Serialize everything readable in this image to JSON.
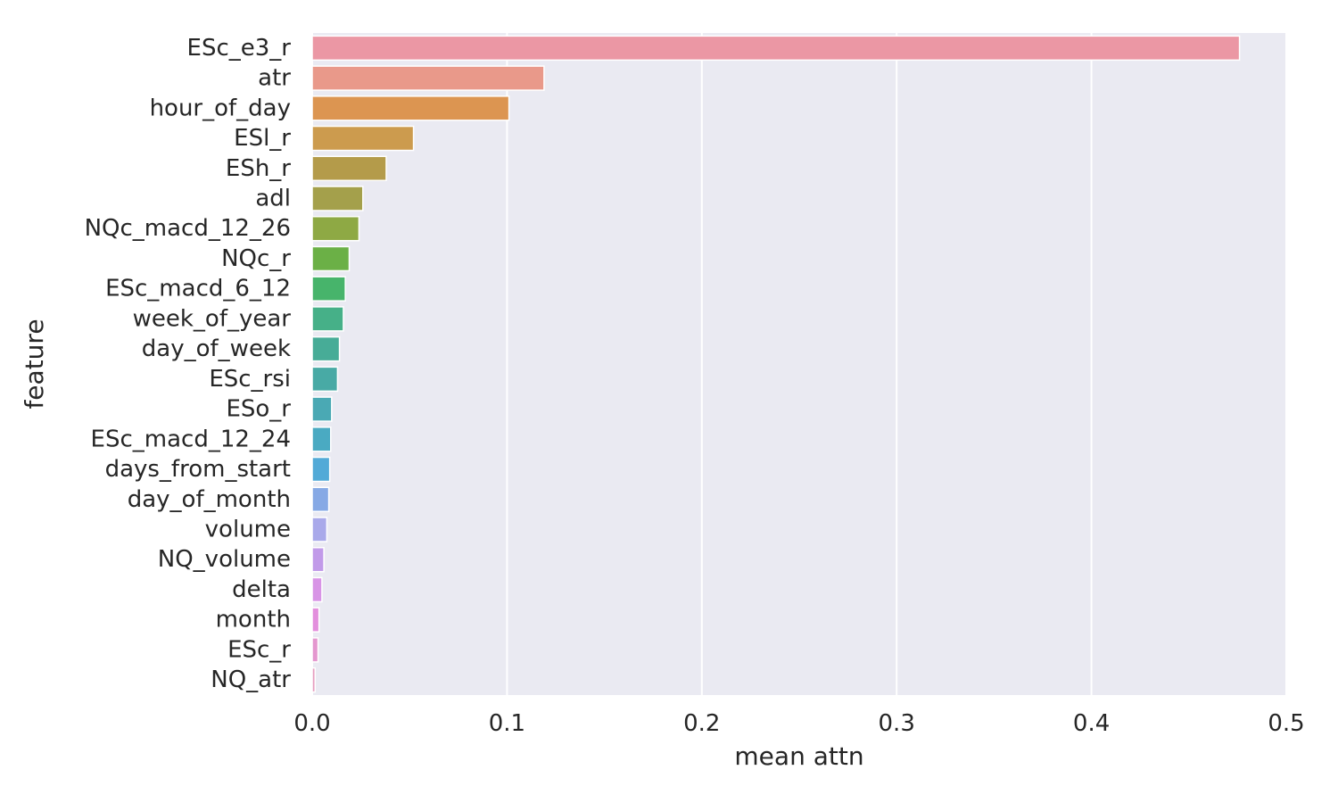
{
  "chart_data": {
    "type": "bar",
    "orientation": "horizontal",
    "categories": [
      "ESc_e3_r",
      "atr",
      "hour_of_day",
      "ESl_r",
      "ESh_r",
      "adl",
      "NQc_macd_12_26",
      "NQc_r",
      "ESc_macd_6_12",
      "week_of_year",
      "day_of_week",
      "ESc_rsi",
      "ESo_r",
      "ESc_macd_12_24",
      "days_from_start",
      "day_of_month",
      "volume",
      "NQ_volume",
      "delta",
      "month",
      "ESc_r",
      "NQ_atr"
    ],
    "values": [
      0.476,
      0.119,
      0.101,
      0.052,
      0.038,
      0.026,
      0.024,
      0.019,
      0.017,
      0.016,
      0.014,
      0.013,
      0.01,
      0.0095,
      0.009,
      0.0085,
      0.0075,
      0.006,
      0.005,
      0.0035,
      0.003,
      0.0015
    ],
    "colors": [
      "#eb97a4",
      "#e9998a",
      "#dc9551",
      "#cc9b4e",
      "#b49b4a",
      "#a4a04b",
      "#8ea944",
      "#6bb046",
      "#47b46b",
      "#46b088",
      "#47ac97",
      "#48aaa5",
      "#4aa9b4",
      "#4aaac2",
      "#52aad7",
      "#86a9e5",
      "#a9a9ea",
      "#c19ae9",
      "#d894e6",
      "#e38fdd",
      "#e497cf",
      "#e69ec0"
    ],
    "xlabel": "mean attn",
    "ylabel": "feature",
    "xlim": [
      0.0,
      0.5
    ],
    "xticks": [
      0.0,
      0.1,
      0.2,
      0.3,
      0.4,
      0.5
    ],
    "xtick_labels": [
      "0.0",
      "0.1",
      "0.2",
      "0.3",
      "0.4",
      "0.5"
    ],
    "grid": true,
    "background": "#eaeaf2",
    "grid_color": "#ffffff"
  }
}
